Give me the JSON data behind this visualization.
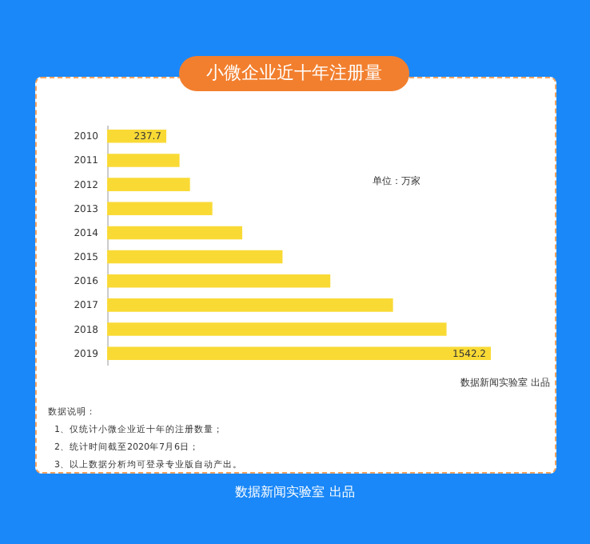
{
  "chart_data": {
    "type": "bar",
    "orientation": "horizontal",
    "title": "小微企业近十年注册量",
    "categories": [
      "2010",
      "2011",
      "2012",
      "2013",
      "2014",
      "2015",
      "2016",
      "2017",
      "2018",
      "2019"
    ],
    "values": [
      237.7,
      291,
      333,
      423,
      543,
      705,
      897,
      1149,
      1364,
      1542.2
    ],
    "value_labels": [
      "237.7",
      null,
      null,
      null,
      null,
      null,
      null,
      null,
      null,
      "1542.2"
    ],
    "color": "#f9da35",
    "annotations": [
      "单位：万家",
      "数据新闻实验室 出品",
      "数据说明：",
      "1、仅统计小微企业近十年的注册数量；",
      "2、统计时间截至2020年7月6日；",
      "3、以上数据分析均可登录专业版自动产出。",
      "数据新闻实验室 出品"
    ]
  }
}
